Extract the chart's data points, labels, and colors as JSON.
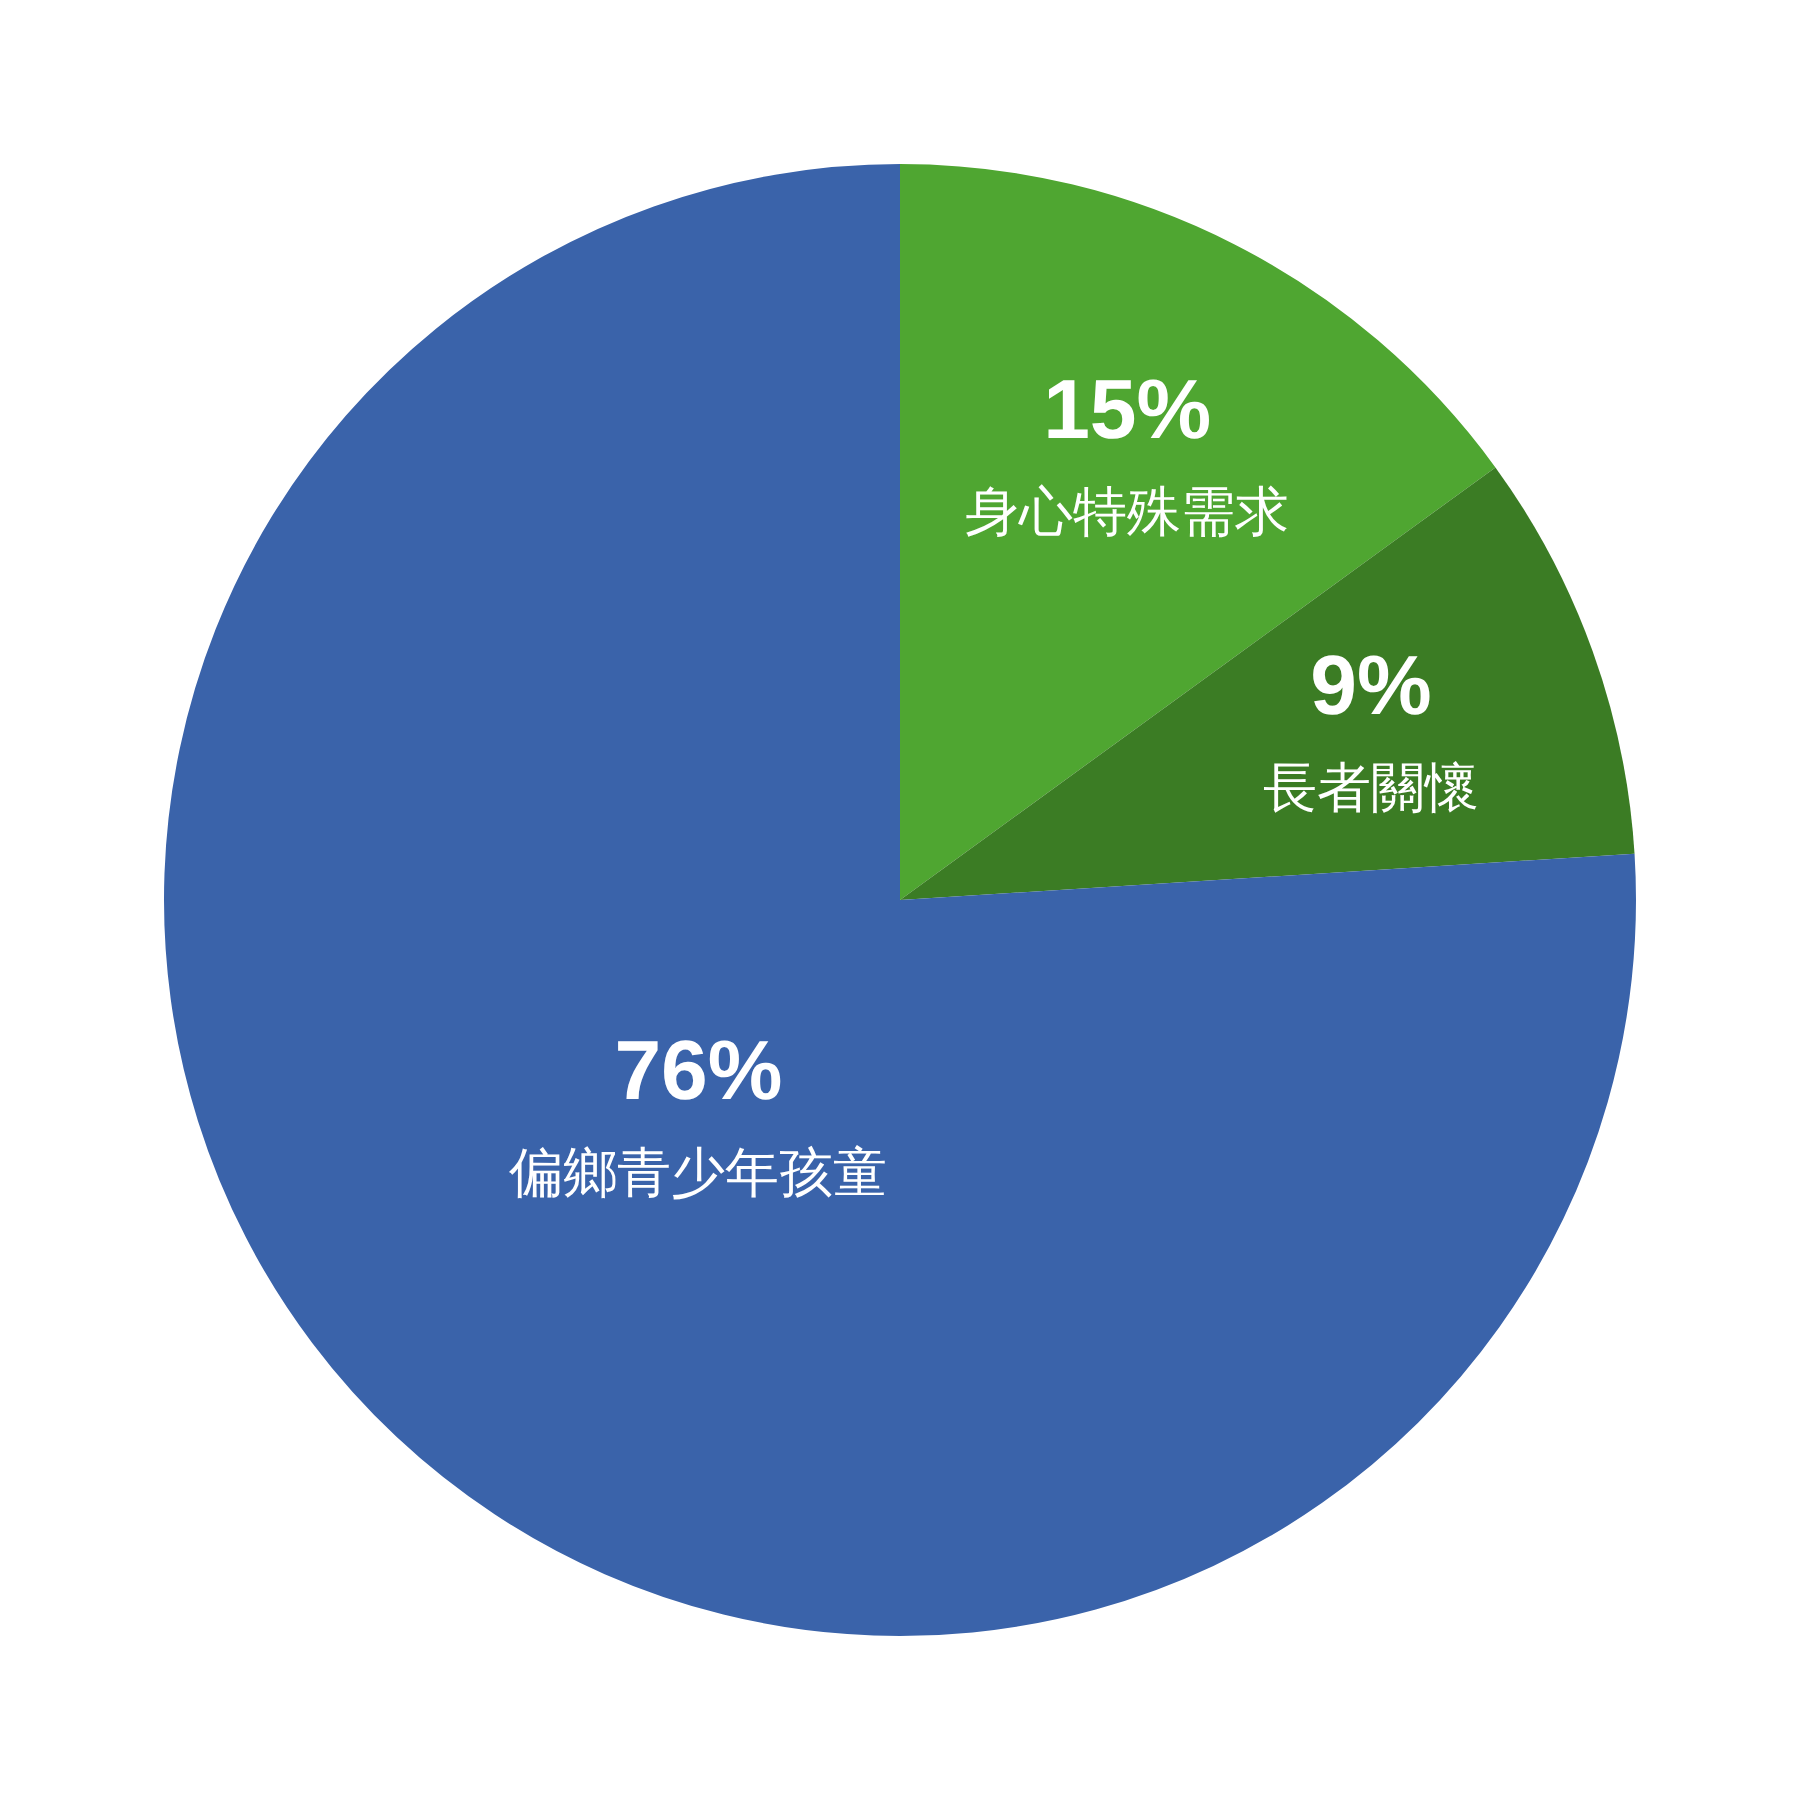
{
  "chart_data": {
    "type": "pie",
    "categories": [
      "身心特殊需求",
      "長者關懷",
      "偏鄉青少年孩童"
    ],
    "values": [
      15,
      9,
      76
    ],
    "value_labels": [
      "15%",
      "9%",
      "76%"
    ],
    "colors": [
      "#4fa631",
      "#3b7c24",
      "#3a63aa"
    ]
  }
}
